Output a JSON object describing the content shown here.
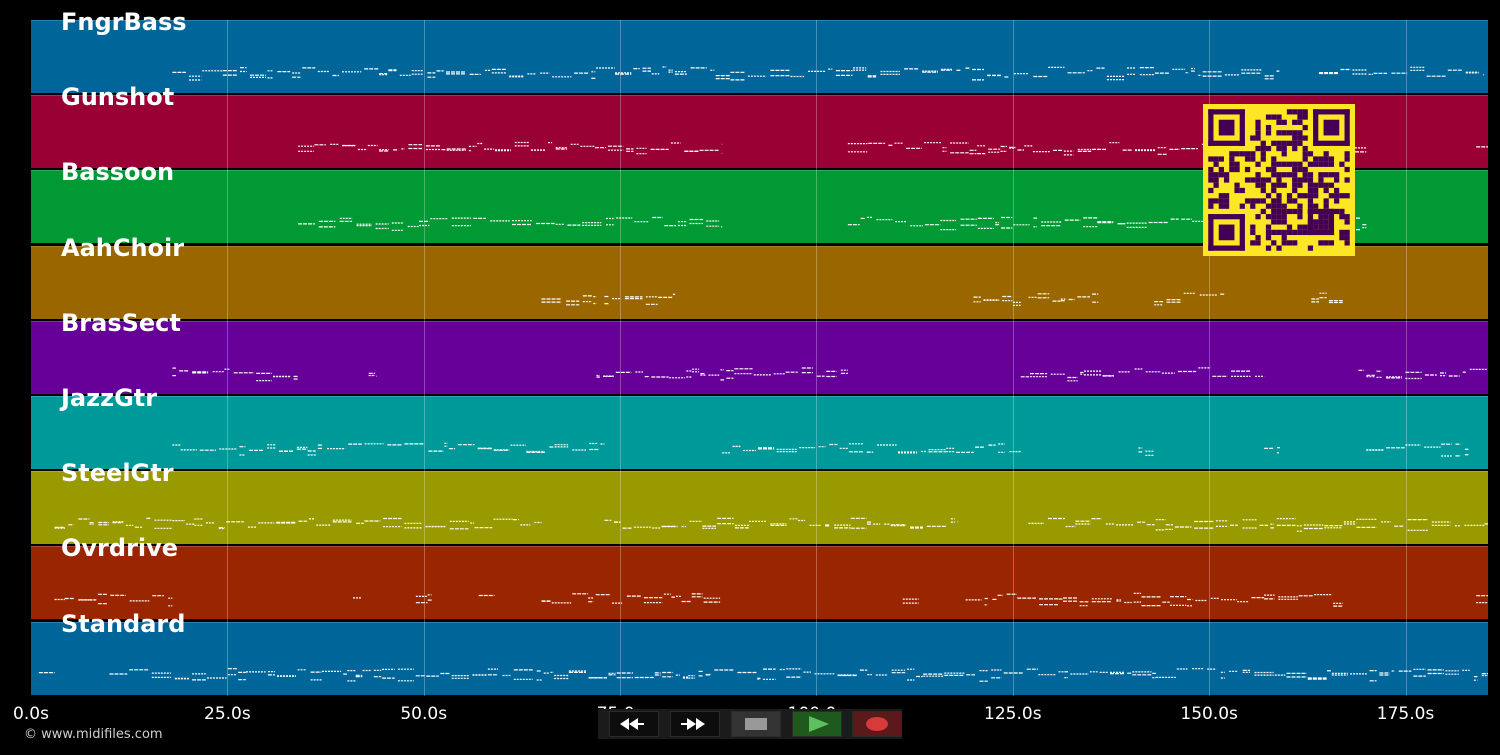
{
  "player": {
    "tracks": [
      {
        "name": "FngrBass",
        "color": "#006699"
      },
      {
        "name": "Gunshot",
        "color": "#990033"
      },
      {
        "name": "Bassoon",
        "color": "#009933"
      },
      {
        "name": "AahChoir",
        "color": "#996600"
      },
      {
        "name": "BrasSect",
        "color": "#660099"
      },
      {
        "name": "JazzGtr",
        "color": "#009999"
      },
      {
        "name": "SteelGtr",
        "color": "#999900"
      },
      {
        "name": "Ovrdrive",
        "color": "#992600"
      },
      {
        "name": "Standard",
        "color": "#006699"
      }
    ],
    "timeline": {
      "ticks": [
        "0.0s",
        "25.0s",
        "50.0s",
        "75.0s",
        "100.0s",
        "125.0s",
        "150.0s",
        "175.0s"
      ],
      "tick_seconds": [
        0,
        25,
        50,
        75,
        100,
        125,
        150,
        175
      ],
      "duration_seconds": 185.5
    },
    "copyright": "© www.midifiles.com",
    "transport": {
      "rewind": "rewind-icon",
      "fast_forward": "fast-forward-icon",
      "stop": "stop-icon",
      "play": "play-icon",
      "record": "record-icon"
    },
    "qr_code": "qr-code",
    "colors": {
      "background": "#000000",
      "qr_fg": "#440154",
      "qr_bg": "#fde725",
      "note": "#ffffff"
    }
  }
}
